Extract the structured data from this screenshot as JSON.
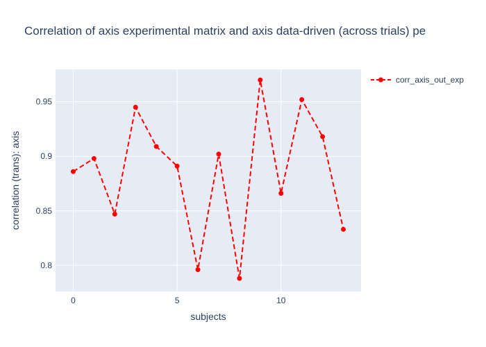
{
  "chart_data": {
    "type": "line",
    "title": "Correlation of axis experimental matrix and axis data-driven (across trials) pe",
    "xlabel": "subjects",
    "ylabel": "correlation (trans): axis",
    "x": [
      0,
      1,
      2,
      3,
      4,
      5,
      6,
      7,
      8,
      9,
      10,
      11,
      12,
      13
    ],
    "series": [
      {
        "name": "corr_axis_out_exp",
        "values": [
          0.886,
          0.898,
          0.847,
          0.945,
          0.909,
          0.891,
          0.796,
          0.902,
          0.788,
          0.97,
          0.866,
          0.952,
          0.918,
          0.833
        ],
        "color": "#ff0000",
        "line_style": "dash",
        "marker": "circle"
      }
    ],
    "xticks": [
      0,
      5,
      10
    ],
    "xtick_labels": [
      "0",
      "5",
      "10"
    ],
    "yticks": [
      0.8,
      0.85,
      0.9,
      0.95
    ],
    "ytick_labels": [
      "0.8",
      "0.85",
      "0.9",
      "0.95"
    ],
    "xlim": [
      -0.85,
      13.85
    ],
    "ylim": [
      0.776,
      0.9797
    ],
    "grid": true,
    "legend_position": "top-right",
    "plot_background": "#e5ecf6",
    "grid_color": "#ffffff"
  }
}
